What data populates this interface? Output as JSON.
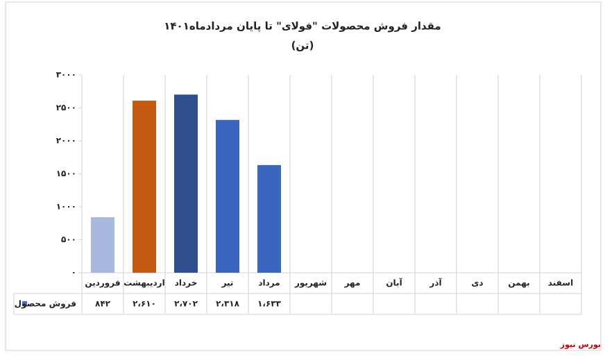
{
  "chart_data": {
    "type": "bar",
    "title": "مقدار فروش محصولات \"فولای\" تا پایان  مردادماه۱۴۰۱",
    "subtitle": "(تن)",
    "categories": [
      "فروردین",
      "اردیبهشت",
      "خرداد",
      "تیر",
      "مرداد",
      "شهریور",
      "مهر",
      "آبان",
      "آذر",
      "دی",
      "بهمن",
      "اسفند"
    ],
    "series": [
      {
        "name": "فروش محصول",
        "color": "#4472c4",
        "colors": [
          "#a9b8e0",
          "#c55a11",
          "#2f4f8f",
          "#3a66c0",
          "#3a66c0",
          null,
          null,
          null,
          null,
          null,
          null,
          null
        ],
        "values": [
          842,
          2610,
          2702,
          2318,
          1633,
          null,
          null,
          null,
          null,
          null,
          null,
          null
        ],
        "value_labels": [
          "۸۴۲",
          "۲،۶۱۰",
          "۲،۷۰۲",
          "۲،۳۱۸",
          "۱،۶۳۳",
          null,
          null,
          null,
          null,
          null,
          null,
          null
        ]
      }
    ],
    "ylim": [
      0,
      3000
    ],
    "yticks": [
      {
        "value": 0,
        "label": "۰"
      },
      {
        "value": 500,
        "label": "۵۰۰"
      },
      {
        "value": 1000,
        "label": "۱۰۰۰"
      },
      {
        "value": 1500,
        "label": "۱۵۰۰"
      },
      {
        "value": 2000,
        "label": "۲۰۰۰"
      },
      {
        "value": 2500,
        "label": "۲۵۰۰"
      },
      {
        "value": 3000,
        "label": "۳۰۰۰"
      }
    ],
    "watermark": "بورس نیوز"
  }
}
